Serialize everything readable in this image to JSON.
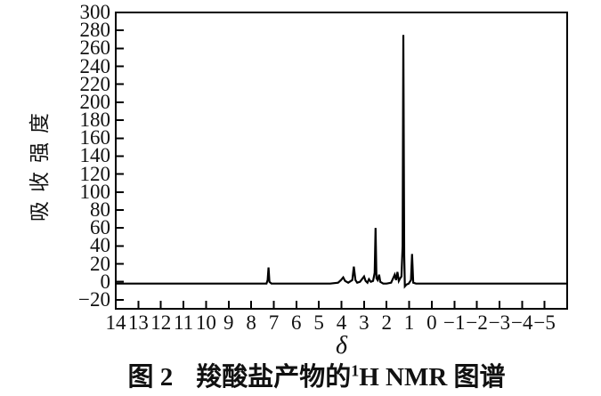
{
  "figure": {
    "caption": {
      "prefix": "图 2",
      "body": "羧酸盐产物的",
      "superscript": "1",
      "suffix": "H NMR 图谱"
    }
  },
  "chart_data": {
    "type": "line",
    "title": "图 2 羧酸盐产物的1H NMR 图谱",
    "xlabel": "δ",
    "ylabel": "吸收强度",
    "grid": false,
    "line_color": "#000000",
    "background_color": "#ffffff",
    "x_axis": {
      "min": 14,
      "max": -6,
      "ticks": [
        14,
        13,
        12,
        11,
        10,
        9,
        8,
        7,
        6,
        5,
        4,
        3,
        2,
        1,
        0,
        -1,
        -2,
        -3,
        -4,
        -5
      ]
    },
    "y_axis": {
      "min": -30,
      "max": 300,
      "ticks": [
        300,
        280,
        260,
        240,
        220,
        200,
        180,
        160,
        140,
        120,
        100,
        80,
        60,
        40,
        20,
        0,
        -20
      ]
    },
    "peaks": [
      {
        "delta": 7.2,
        "intensity": 16
      },
      {
        "delta": 3.9,
        "intensity": 5
      },
      {
        "delta": 3.4,
        "intensity": 17
      },
      {
        "delta": 3.0,
        "intensity": 6
      },
      {
        "delta": 2.5,
        "intensity": 60
      },
      {
        "delta": 2.33,
        "intensity": 8
      },
      {
        "delta": 1.6,
        "intensity": 8
      },
      {
        "delta": 1.5,
        "intensity": 11
      },
      {
        "delta": 1.26,
        "intensity": 275
      },
      {
        "delta": 0.85,
        "intensity": 31
      }
    ],
    "trace_points": [
      [
        14.0,
        -2
      ],
      [
        10.0,
        -2
      ],
      [
        8.0,
        -2
      ],
      [
        7.32,
        -2
      ],
      [
        7.27,
        2
      ],
      [
        7.23,
        16
      ],
      [
        7.19,
        0
      ],
      [
        7.1,
        -2
      ],
      [
        6.0,
        -2
      ],
      [
        5.0,
        -2
      ],
      [
        4.5,
        -2
      ],
      [
        4.15,
        -1
      ],
      [
        4.02,
        2
      ],
      [
        3.92,
        5
      ],
      [
        3.84,
        1
      ],
      [
        3.7,
        -1
      ],
      [
        3.52,
        2
      ],
      [
        3.45,
        17
      ],
      [
        3.38,
        2
      ],
      [
        3.3,
        -1
      ],
      [
        3.18,
        0
      ],
      [
        3.0,
        6
      ],
      [
        2.93,
        1
      ],
      [
        2.85,
        -1
      ],
      [
        2.78,
        3
      ],
      [
        2.7,
        0
      ],
      [
        2.6,
        1
      ],
      [
        2.53,
        10
      ],
      [
        2.49,
        60
      ],
      [
        2.45,
        4
      ],
      [
        2.4,
        2
      ],
      [
        2.33,
        8
      ],
      [
        2.28,
        0
      ],
      [
        2.15,
        -2
      ],
      [
        2.0,
        -2
      ],
      [
        1.8,
        -1
      ],
      [
        1.64,
        8
      ],
      [
        1.58,
        2
      ],
      [
        1.52,
        11
      ],
      [
        1.46,
        1
      ],
      [
        1.4,
        4
      ],
      [
        1.34,
        6
      ],
      [
        1.29,
        40
      ],
      [
        1.26,
        275
      ],
      [
        1.22,
        30
      ],
      [
        1.19,
        -5
      ],
      [
        1.12,
        -3
      ],
      [
        1.02,
        -2
      ],
      [
        0.92,
        2
      ],
      [
        0.87,
        31
      ],
      [
        0.82,
        -1
      ],
      [
        0.7,
        -2
      ],
      [
        0.0,
        -2
      ],
      [
        -2.0,
        -2
      ],
      [
        -4.0,
        -2
      ],
      [
        -6.0,
        -2
      ]
    ]
  }
}
